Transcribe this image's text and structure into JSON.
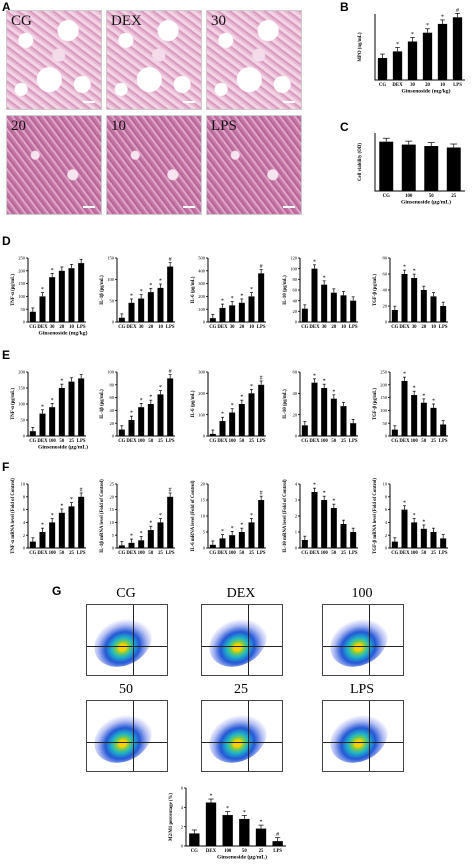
{
  "panels": {
    "A": "A",
    "B": "B",
    "C": "C",
    "D": "D",
    "E": "E",
    "F": "F",
    "G": "G"
  },
  "histology": [
    {
      "label": "CG",
      "dense": false
    },
    {
      "label": "DEX",
      "dense": false
    },
    {
      "label": "30",
      "dense": false
    },
    {
      "label": "20",
      "dense": true
    },
    {
      "label": "10",
      "dense": true
    },
    {
      "label": "LPS",
      "dense": true
    }
  ],
  "colors": {
    "bar": "#000000",
    "axis": "#000000",
    "cloud_core": "#ffd000",
    "cloud_edge": "#2457d6"
  },
  "chart_data": [
    {
      "id": "B",
      "type": "bar",
      "ylabel": "MPO (ng/mL)",
      "xlabel": "Ginsenoside (mg/kg)",
      "categories": [
        "CG",
        "DEX",
        "30",
        "20",
        "10",
        "LPS"
      ],
      "values": [
        1.0,
        1.3,
        1.75,
        2.15,
        2.55,
        2.85
      ],
      "ylim": [
        0,
        3
      ],
      "yticks": [],
      "annotations": [
        "",
        "*",
        "*",
        "*",
        "*",
        "#"
      ]
    },
    {
      "id": "C",
      "type": "bar",
      "ylabel": "Cell viability (OD)",
      "xlabel": "Ginsenoside (μg/mL)",
      "categories": [
        "CG",
        "100",
        "50",
        "25"
      ],
      "values": [
        1.7,
        1.6,
        1.55,
        1.5
      ],
      "ylim": [
        0,
        2
      ],
      "yticks": [],
      "annotations": [
        "",
        "",
        "",
        ""
      ]
    },
    {
      "id": "D1",
      "type": "bar",
      "ylabel": "TNF-α (pg/mL)",
      "xlabel": "Ginsenoside (mg/kg)",
      "categories": [
        "CG",
        "DEX",
        "30",
        "20",
        "10",
        "LPS"
      ],
      "values": [
        40,
        100,
        175,
        200,
        210,
        230
      ],
      "ylim": [
        0,
        250
      ],
      "yticks": [
        "0",
        "50",
        "100",
        "150",
        "200",
        "250"
      ],
      "annotations": [
        "",
        "*",
        "*",
        "",
        "",
        ""
      ]
    },
    {
      "id": "D2",
      "type": "bar",
      "ylabel": "IL-1β (pg/mL)",
      "xlabel": "",
      "categories": [
        "CG",
        "DEX",
        "30",
        "20",
        "10",
        "LPS"
      ],
      "values": [
        10,
        45,
        55,
        70,
        80,
        130
      ],
      "ylim": [
        0,
        150
      ],
      "yticks": [
        "0",
        "50",
        "100",
        "150"
      ],
      "annotations": [
        "",
        "*",
        "*",
        "*",
        "*",
        "#"
      ]
    },
    {
      "id": "D3",
      "type": "bar",
      "ylabel": "IL-6 (pg/mL)",
      "xlabel": "",
      "categories": [
        "CG",
        "DEX",
        "30",
        "20",
        "10",
        "LPS"
      ],
      "values": [
        30,
        110,
        130,
        150,
        200,
        380
      ],
      "ylim": [
        0,
        500
      ],
      "yticks": [
        "0",
        "100",
        "200",
        "300",
        "400",
        "500"
      ],
      "annotations": [
        "",
        "*",
        "*",
        "*",
        "*",
        "#"
      ]
    },
    {
      "id": "D4",
      "type": "bar",
      "ylabel": "IL-10 (pg/mL)",
      "xlabel": "",
      "categories": [
        "CG",
        "DEX",
        "30",
        "20",
        "10",
        "LPS"
      ],
      "values": [
        25,
        100,
        70,
        55,
        50,
        40
      ],
      "ylim": [
        0,
        120
      ],
      "yticks": [
        "0",
        "20",
        "40",
        "60",
        "80",
        "100",
        "120"
      ],
      "annotations": [
        "",
        "*",
        "*",
        "",
        "",
        ""
      ]
    },
    {
      "id": "D5",
      "type": "bar",
      "ylabel": "TGF-β (pg/mL)",
      "xlabel": "",
      "categories": [
        "CG",
        "DEX",
        "30",
        "20",
        "10",
        "LPS"
      ],
      "values": [
        15,
        60,
        55,
        40,
        32,
        20
      ],
      "ylim": [
        0,
        80
      ],
      "yticks": [
        "0",
        "20",
        "40",
        "60",
        "80"
      ],
      "annotations": [
        "",
        "*",
        "*",
        "",
        "",
        ""
      ]
    },
    {
      "id": "E1",
      "type": "bar",
      "ylabel": "TNF-α (pg/mL)",
      "xlabel": "Ginsenoside (μg/mL)",
      "categories": [
        "CG",
        "DEX",
        "100",
        "50",
        "25",
        "LPS"
      ],
      "values": [
        15,
        70,
        90,
        150,
        170,
        180
      ],
      "ylim": [
        0,
        200
      ],
      "yticks": [
        "0",
        "50",
        "100",
        "150",
        "200"
      ],
      "annotations": [
        "",
        "*",
        "*",
        "*",
        "",
        ""
      ]
    },
    {
      "id": "E2",
      "type": "bar",
      "ylabel": "IL-1β (pg/mL)",
      "xlabel": "",
      "categories": [
        "CG",
        "DEX",
        "100",
        "50",
        "25",
        "LPS"
      ],
      "values": [
        10,
        25,
        45,
        50,
        65,
        90
      ],
      "ylim": [
        0,
        100
      ],
      "yticks": [
        "0",
        "20",
        "40",
        "60",
        "80",
        "100"
      ],
      "annotations": [
        "",
        "*",
        "*",
        "*",
        "*",
        "#"
      ]
    },
    {
      "id": "E3",
      "type": "bar",
      "ylabel": "IL-6 (pg/mL)",
      "xlabel": "",
      "categories": [
        "CG",
        "DEX",
        "100",
        "50",
        "25",
        "LPS"
      ],
      "values": [
        10,
        70,
        110,
        150,
        200,
        240
      ],
      "ylim": [
        0,
        300
      ],
      "yticks": [
        "0",
        "100",
        "200",
        "300"
      ],
      "annotations": [
        "",
        "*",
        "*",
        "*",
        "*",
        "#"
      ]
    },
    {
      "id": "E4",
      "type": "bar",
      "ylabel": "IL-10 (pg/mL)",
      "xlabel": "",
      "categories": [
        "CG",
        "DEX",
        "100",
        "50",
        "25",
        "LPS"
      ],
      "values": [
        10,
        50,
        45,
        35,
        28,
        12
      ],
      "ylim": [
        0,
        60
      ],
      "yticks": [
        "0",
        "20",
        "40",
        "60"
      ],
      "annotations": [
        "",
        "*",
        "*",
        "*",
        "",
        ""
      ]
    },
    {
      "id": "E5",
      "type": "bar",
      "ylabel": "TGF-β (pg/mL)",
      "xlabel": "",
      "categories": [
        "CG",
        "DEX",
        "100",
        "50",
        "25",
        "LPS"
      ],
      "values": [
        25,
        215,
        160,
        130,
        110,
        45
      ],
      "ylim": [
        0,
        250
      ],
      "yticks": [
        "0",
        "50",
        "100",
        "150",
        "200",
        "250"
      ],
      "annotations": [
        "",
        "*",
        "*",
        "*",
        "*",
        ""
      ]
    },
    {
      "id": "F1",
      "type": "bar",
      "ylabel": "TNF-α mRNA level (Fold of Control)",
      "xlabel": "",
      "categories": [
        "CG",
        "DEX",
        "100",
        "50",
        "25",
        "LPS"
      ],
      "values": [
        1,
        2.5,
        4,
        5.5,
        6.5,
        8
      ],
      "ylim": [
        0,
        10
      ],
      "yticks": [
        "0",
        "2",
        "4",
        "6",
        "8",
        "10"
      ],
      "annotations": [
        "",
        "*",
        "*",
        "*",
        "*",
        "#"
      ]
    },
    {
      "id": "F2",
      "type": "bar",
      "ylabel": "IL-1β mRNA level (Fold of Control)",
      "xlabel": "",
      "categories": [
        "CG",
        "DEX",
        "100",
        "50",
        "25",
        "LPS"
      ],
      "values": [
        1,
        2,
        3,
        7,
        10,
        20
      ],
      "ylim": [
        0,
        25
      ],
      "yticks": [
        "0",
        "5",
        "10",
        "15",
        "20",
        "25"
      ],
      "annotations": [
        "",
        "*",
        "*",
        "*",
        "*",
        "#"
      ]
    },
    {
      "id": "F3",
      "type": "bar",
      "ylabel": "IL-6 mRNA level (Fold of Control)",
      "xlabel": "",
      "categories": [
        "CG",
        "DEX",
        "100",
        "50",
        "25",
        "LPS"
      ],
      "values": [
        1,
        3,
        4,
        5,
        8,
        15
      ],
      "ylim": [
        0,
        20
      ],
      "yticks": [
        "0",
        "5",
        "10",
        "15",
        "20"
      ],
      "annotations": [
        "",
        "*",
        "*",
        "*",
        "*",
        "#"
      ]
    },
    {
      "id": "F4",
      "type": "bar",
      "ylabel": "IL-10 mRNA level (Fold of Control)",
      "xlabel": "",
      "categories": [
        "CG",
        "DEX",
        "100",
        "50",
        "25",
        "LPS"
      ],
      "values": [
        0.5,
        3.5,
        3.0,
        2.5,
        1.5,
        1.0
      ],
      "ylim": [
        0,
        4
      ],
      "yticks": [
        "0",
        "1",
        "2",
        "3",
        "4"
      ],
      "annotations": [
        "",
        "*",
        "*",
        "*",
        "",
        ""
      ]
    },
    {
      "id": "F5",
      "type": "bar",
      "ylabel": "TGF-β mRNA level (Fold of Control)",
      "xlabel": "",
      "categories": [
        "CG",
        "DEX",
        "100",
        "50",
        "25",
        "LPS"
      ],
      "values": [
        1,
        6,
        4,
        3,
        2.5,
        1.5
      ],
      "ylim": [
        0,
        10
      ],
      "yticks": [
        "0",
        "2",
        "4",
        "6",
        "8",
        "10"
      ],
      "annotations": [
        "",
        "*",
        "*",
        "*",
        "",
        ""
      ]
    },
    {
      "id": "G-bar",
      "type": "bar",
      "ylabel": "M2/M1 percentage (%)",
      "xlabel": "Ginsenoside (μg/mL)",
      "categories": [
        "CG",
        "DEX",
        "100",
        "50",
        "25",
        "LPS"
      ],
      "values": [
        1.3,
        4.5,
        3.2,
        2.8,
        1.8,
        0.5
      ],
      "ylim": [
        0,
        6
      ],
      "yticks": [
        "0",
        "2",
        "4",
        "6"
      ],
      "annotations": [
        "",
        "*",
        "*",
        "*",
        "*",
        "#"
      ]
    }
  ],
  "flow": [
    {
      "title": "CG"
    },
    {
      "title": "DEX"
    },
    {
      "title": "100"
    },
    {
      "title": "50"
    },
    {
      "title": "25"
    },
    {
      "title": "LPS"
    }
  ]
}
